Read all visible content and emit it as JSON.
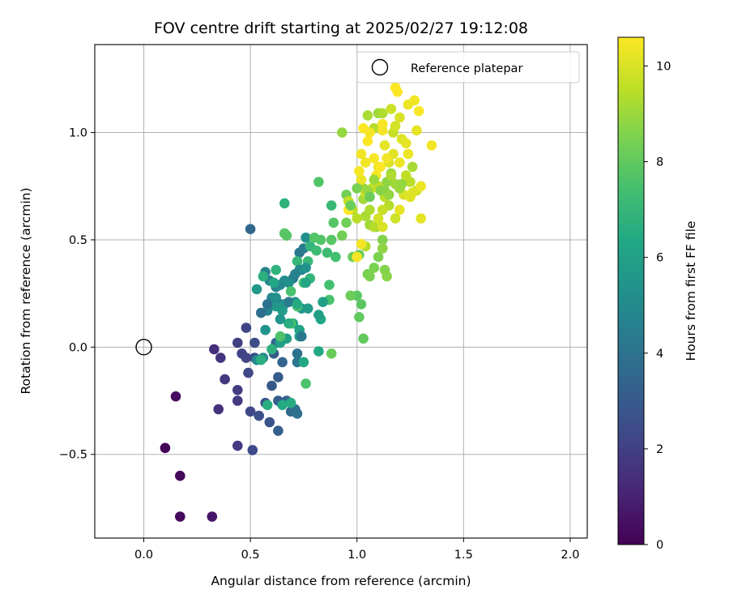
{
  "chart_data": {
    "type": "scatter",
    "title": "FOV centre drift starting at 2025/02/27 19:12:08",
    "xlabel": "Angular distance from reference (arcmin)",
    "ylabel": "Rotation from reference (arcmin)",
    "xlim": [
      -0.23,
      2.08
    ],
    "ylim": [
      -0.89,
      1.41
    ],
    "xticks": [
      0.0,
      0.5,
      1.0,
      1.5,
      2.0
    ],
    "xtick_labels": [
      "0.0",
      "0.5",
      "1.0",
      "1.5",
      "2.0"
    ],
    "yticks": [
      -0.5,
      0.0,
      0.5,
      1.0
    ],
    "ytick_labels": [
      "−0.5",
      "0.0",
      "0.5",
      "1.0"
    ],
    "grid": true,
    "legend": {
      "label": "Reference platepar",
      "placement": "top-right"
    },
    "reference_point": {
      "x": 0.0,
      "y": 0.0,
      "marker": "open-circle"
    },
    "colorbar": {
      "label": "Hours from first FF file",
      "min": 0,
      "max": 10.6,
      "ticks": [
        0,
        2,
        4,
        6,
        8,
        10
      ],
      "tick_labels": [
        "0",
        "2",
        "4",
        "6",
        "8",
        "10"
      ],
      "colormap": "viridis"
    },
    "points": [
      [
        0.1,
        -0.47,
        0.1
      ],
      [
        0.17,
        -0.6,
        0.2
      ],
      [
        0.17,
        -0.79,
        0.2
      ],
      [
        0.15,
        -0.23,
        0.4
      ],
      [
        0.32,
        -0.79,
        0.6
      ],
      [
        0.33,
        -0.01,
        1.4
      ],
      [
        0.35,
        -0.29,
        1.5
      ],
      [
        0.36,
        -0.05,
        1.6
      ],
      [
        0.38,
        -0.15,
        1.7
      ],
      [
        0.44,
        -0.46,
        1.8
      ],
      [
        0.44,
        -0.25,
        1.8
      ],
      [
        0.44,
        -0.2,
        1.9
      ],
      [
        0.44,
        0.02,
        2.0
      ],
      [
        0.46,
        -0.03,
        2.1
      ],
      [
        0.48,
        0.09,
        2.1
      ],
      [
        0.48,
        -0.05,
        2.2
      ],
      [
        0.49,
        -0.12,
        2.3
      ],
      [
        0.5,
        -0.3,
        2.3
      ],
      [
        0.51,
        -0.48,
        2.4
      ],
      [
        0.52,
        -0.05,
        2.4
      ],
      [
        0.52,
        0.02,
        2.5
      ],
      [
        0.54,
        -0.32,
        2.6
      ],
      [
        0.57,
        -0.26,
        2.7
      ],
      [
        0.59,
        -0.35,
        2.8
      ],
      [
        0.6,
        -0.18,
        2.9
      ],
      [
        0.61,
        -0.03,
        3.0
      ],
      [
        0.63,
        -0.14,
        3.0
      ],
      [
        0.63,
        -0.25,
        3.1
      ],
      [
        0.63,
        -0.39,
        3.2
      ],
      [
        0.64,
        0.2,
        3.3
      ],
      [
        0.65,
        -0.07,
        3.4
      ],
      [
        0.67,
        -0.25,
        3.4
      ],
      [
        0.5,
        0.55,
        3.5
      ],
      [
        0.62,
        0.02,
        3.6
      ],
      [
        0.69,
        -0.3,
        3.7
      ],
      [
        0.71,
        -0.29,
        3.8
      ],
      [
        0.72,
        -0.31,
        3.9
      ],
      [
        0.72,
        -0.03,
        4.0
      ],
      [
        0.72,
        -0.07,
        4.1
      ],
      [
        0.73,
        0.44,
        4.2
      ],
      [
        0.74,
        0.36,
        4.3
      ],
      [
        0.75,
        0.46,
        4.4
      ],
      [
        0.7,
        0.32,
        4.5
      ],
      [
        0.62,
        0.28,
        4.6
      ],
      [
        0.59,
        0.31,
        4.7
      ],
      [
        0.57,
        0.35,
        4.7
      ],
      [
        0.58,
        0.17,
        4.8
      ],
      [
        0.6,
        0.23,
        4.9
      ],
      [
        0.53,
        -0.06,
        4.9
      ],
      [
        0.56,
        -0.05,
        5.0
      ],
      [
        0.64,
        0.29,
        5.0
      ],
      [
        0.66,
        0.31,
        5.1
      ],
      [
        0.68,
        0.3,
        5.2
      ],
      [
        0.66,
        0.53,
        4.9
      ],
      [
        0.76,
        0.51,
        5.3
      ],
      [
        0.71,
        0.21,
        5.4
      ],
      [
        0.66,
        0.2,
        5.5
      ],
      [
        0.62,
        0.19,
        5.6
      ],
      [
        0.74,
        0.18,
        5.7
      ],
      [
        0.77,
        0.18,
        5.8
      ],
      [
        0.65,
        0.17,
        5.8
      ],
      [
        0.64,
        0.02,
        5.9
      ],
      [
        0.67,
        0.04,
        6.0
      ],
      [
        0.7,
        0.11,
        6.1
      ],
      [
        0.73,
        0.08,
        6.1
      ],
      [
        0.73,
        0.05,
        6.2
      ],
      [
        0.75,
        -0.07,
        6.3
      ],
      [
        0.83,
        0.13,
        6.3
      ],
      [
        0.82,
        -0.02,
        6.4
      ],
      [
        0.65,
        -0.27,
        6.4
      ],
      [
        0.69,
        -0.26,
        6.5
      ],
      [
        0.58,
        -0.27,
        6.6
      ],
      [
        0.55,
        -0.06,
        6.6
      ],
      [
        0.6,
        -0.01,
        6.7
      ],
      [
        0.56,
        0.33,
        6.7
      ],
      [
        0.62,
        0.36,
        6.8
      ],
      [
        0.66,
        0.67,
        6.8
      ],
      [
        0.78,
        0.47,
        6.9
      ],
      [
        0.72,
        0.4,
        7.0
      ],
      [
        0.77,
        0.4,
        7.1
      ],
      [
        0.88,
        0.66,
        7.1
      ],
      [
        0.81,
        0.45,
        7.2
      ],
      [
        0.86,
        0.44,
        7.3
      ],
      [
        0.9,
        0.42,
        7.4
      ],
      [
        0.87,
        0.29,
        7.4
      ],
      [
        0.87,
        0.22,
        7.5
      ],
      [
        0.75,
        0.3,
        7.5
      ],
      [
        0.69,
        0.26,
        7.5
      ],
      [
        0.69,
        0.11,
        7.6
      ],
      [
        0.72,
        0.19,
        7.6
      ],
      [
        0.76,
        -0.17,
        7.6
      ],
      [
        0.64,
        0.05,
        7.6
      ],
      [
        0.82,
        0.77,
        7.7
      ],
      [
        0.8,
        0.51,
        7.7
      ],
      [
        0.88,
        0.5,
        7.8
      ],
      [
        0.89,
        0.58,
        7.8
      ],
      [
        1.03,
        0.04,
        8.0
      ],
      [
        1.0,
        0.24,
        7.9
      ],
      [
        1.02,
        0.2,
        7.9
      ],
      [
        1.01,
        0.14,
        8.0
      ],
      [
        0.88,
        -0.03,
        8.1
      ],
      [
        1.01,
        0.43,
        8.1
      ],
      [
        0.98,
        0.42,
        8.2
      ],
      [
        0.97,
        0.24,
        8.2
      ],
      [
        0.93,
        0.52,
        8.3
      ],
      [
        0.95,
        0.58,
        8.3
      ],
      [
        0.95,
        0.71,
        8.3
      ],
      [
        1.05,
        0.34,
        8.4
      ],
      [
        1.06,
        0.33,
        8.5
      ],
      [
        1.08,
        0.37,
        8.5
      ],
      [
        1.1,
        0.42,
        8.5
      ],
      [
        1.12,
        0.5,
        8.6
      ],
      [
        1.13,
        0.36,
        8.6
      ],
      [
        1.14,
        0.33,
        8.7
      ],
      [
        1.09,
        0.56,
        8.7
      ],
      [
        1.12,
        0.46,
        8.8
      ],
      [
        1.13,
        0.73,
        8.8
      ],
      [
        1.14,
        0.77,
        8.8
      ],
      [
        1.16,
        0.81,
        8.9
      ],
      [
        1.03,
        0.74,
        9.0
      ],
      [
        1.03,
        0.69,
        9.1
      ],
      [
        1.06,
        0.57,
        9.1
      ],
      [
        1.04,
        0.61,
        9.2
      ],
      [
        1.06,
        0.64,
        9.3
      ],
      [
        1.08,
        0.56,
        9.4
      ],
      [
        1.04,
        0.47,
        9.4
      ],
      [
        1.0,
        0.6,
        9.5
      ],
      [
        0.98,
        0.64,
        9.5
      ],
      [
        0.96,
        0.68,
        9.6
      ],
      [
        0.93,
        1.0,
        8.9
      ],
      [
        1.05,
        1.08,
        9.2
      ],
      [
        1.08,
        1.02,
        9.4
      ],
      [
        1.1,
        1.09,
        9.0
      ],
      [
        1.12,
        1.09,
        9.3
      ],
      [
        1.17,
        1.0,
        9.7
      ],
      [
        1.16,
        1.11,
        9.8
      ],
      [
        1.18,
        1.03,
        9.9
      ],
      [
        1.2,
        1.07,
        10.0
      ],
      [
        1.21,
        0.97,
        10.1
      ],
      [
        1.23,
        0.95,
        10.2
      ],
      [
        1.24,
        0.9,
        10.3
      ],
      [
        1.22,
        0.71,
        10.0
      ],
      [
        1.23,
        0.8,
        9.6
      ],
      [
        1.25,
        0.77,
        9.5
      ],
      [
        1.26,
        0.84,
        9.2
      ],
      [
        1.28,
        0.73,
        9.9
      ],
      [
        1.25,
        0.7,
        10.1
      ],
      [
        1.3,
        0.75,
        10.3
      ],
      [
        1.3,
        0.6,
        10.2
      ],
      [
        1.35,
        0.94,
        10.4
      ],
      [
        1.28,
        1.01,
        10.2
      ],
      [
        1.24,
        1.13,
        10.3
      ],
      [
        1.27,
        1.15,
        10.4
      ],
      [
        1.29,
        1.1,
        10.5
      ],
      [
        1.19,
        1.19,
        10.6
      ],
      [
        1.18,
        1.21,
        10.6
      ],
      [
        1.12,
        1.01,
        10.4
      ],
      [
        1.13,
        0.94,
        10.2
      ],
      [
        1.15,
        0.86,
        10.0
      ],
      [
        1.17,
        0.9,
        10.1
      ],
      [
        1.1,
        0.84,
        10.3
      ],
      [
        1.08,
        0.88,
        10.5
      ],
      [
        1.05,
        0.96,
        10.6
      ],
      [
        1.04,
        0.86,
        10.4
      ],
      [
        1.02,
        0.78,
        10.3
      ],
      [
        1.04,
        0.72,
        9.8
      ],
      [
        1.07,
        0.74,
        9.7
      ],
      [
        1.1,
        0.75,
        9.6
      ],
      [
        1.13,
        0.7,
        9.5
      ],
      [
        1.15,
        0.66,
        9.4
      ],
      [
        1.12,
        0.64,
        9.7
      ],
      [
        1.12,
        0.56,
        10.0
      ],
      [
        1.1,
        0.6,
        9.9
      ],
      [
        1.18,
        0.6,
        9.8
      ],
      [
        1.2,
        0.64,
        10.2
      ],
      [
        1.0,
        0.42,
        10.5
      ],
      [
        1.02,
        0.48,
        10.4
      ],
      [
        0.96,
        0.64,
        10.6
      ],
      [
        1.01,
        0.82,
        10.5
      ],
      [
        1.02,
        0.9,
        10.4
      ],
      [
        1.09,
        0.8,
        10.5
      ],
      [
        1.11,
        0.84,
        10.6
      ],
      [
        1.14,
        0.88,
        10.4
      ],
      [
        1.2,
        0.86,
        10.3
      ],
      [
        1.26,
        0.72,
        10.1
      ],
      [
        1.12,
        1.04,
        10.5
      ],
      [
        1.03,
        1.02,
        10.6
      ],
      [
        1.06,
        1.0,
        10.5
      ],
      [
        1.16,
        0.8,
        9.3
      ],
      [
        1.18,
        0.76,
        9.1
      ],
      [
        1.2,
        0.74,
        9.0
      ],
      [
        1.21,
        0.76,
        8.9
      ],
      [
        1.08,
        0.78,
        9.0
      ],
      [
        1.05,
        0.73,
        8.9
      ],
      [
        1.0,
        0.74,
        8.4
      ],
      [
        0.97,
        0.66,
        8.2
      ],
      [
        1.11,
        0.73,
        8.7
      ],
      [
        1.15,
        0.71,
        8.9
      ],
      [
        1.06,
        0.7,
        8.2
      ],
      [
        0.78,
        0.32,
        6.9
      ],
      [
        0.68,
        0.11,
        6.6
      ],
      [
        0.66,
        0.53,
        7.9
      ],
      [
        0.67,
        0.52,
        7.8
      ],
      [
        0.83,
        0.5,
        7.7
      ],
      [
        0.84,
        0.21,
        6.0
      ],
      [
        0.82,
        0.15,
        5.9
      ],
      [
        0.76,
        0.3,
        6.2
      ],
      [
        0.73,
        0.36,
        5.1
      ],
      [
        0.76,
        0.37,
        5.3
      ],
      [
        0.62,
        0.23,
        5.2
      ],
      [
        0.64,
        0.13,
        5.5
      ],
      [
        0.71,
        0.34,
        4.6
      ],
      [
        0.68,
        0.21,
        4.4
      ],
      [
        0.74,
        0.05,
        4.2
      ],
      [
        0.58,
        0.2,
        4.0
      ],
      [
        0.55,
        0.16,
        3.8
      ],
      [
        0.53,
        0.27,
        5.6
      ],
      [
        0.57,
        0.08,
        5.4
      ],
      [
        0.61,
        0.3,
        6.3
      ],
      [
        0.72,
        0.2,
        6.5
      ]
    ]
  }
}
